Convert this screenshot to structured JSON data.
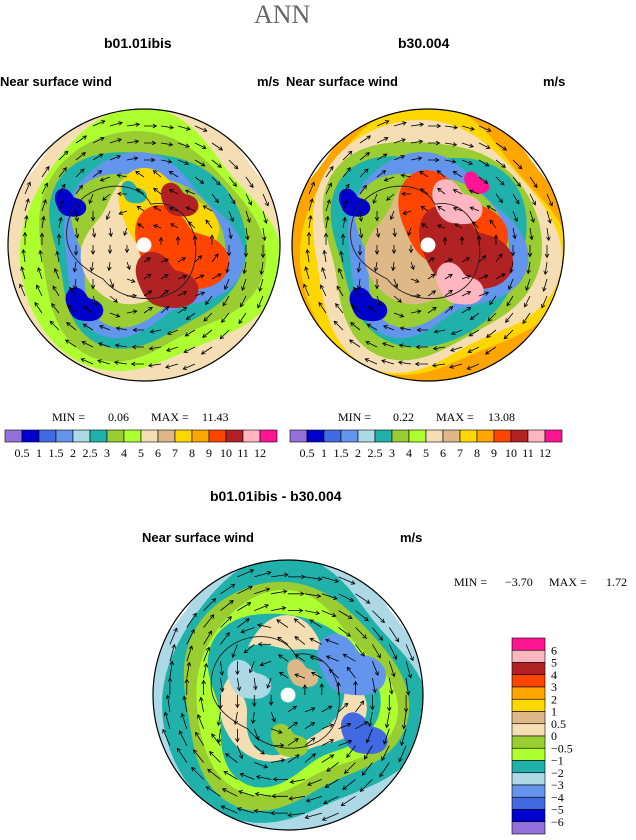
{
  "page": {
    "title": "ANN"
  },
  "colors": {
    "land": "#ffffff",
    "coast": "#222222",
    "arrow": "#000000"
  },
  "chart_data": [
    {
      "type": "heatmap",
      "projection": "polar-stereographic",
      "case": "b01.01ibis",
      "variable": "Near surface wind",
      "units": "m/s",
      "stats": {
        "min_label": "MIN =",
        "min": "0.06",
        "max_label": "MAX =",
        "max": "11.43"
      },
      "colorbar": {
        "orientation": "horizontal",
        "levels": [
          "0.5",
          "1",
          "1.5",
          "2",
          "2.5",
          "3",
          "4",
          "5",
          "6",
          "7",
          "8",
          "9",
          "10",
          "11",
          "12"
        ],
        "colors": [
          "#9370db",
          "#0000cd",
          "#4169e1",
          "#6495ed",
          "#add8e6",
          "#20b2aa",
          "#9acd32",
          "#adff2f",
          "#f5deb3",
          "#deb887",
          "#ffd700",
          "#ffa500",
          "#ff4500",
          "#b22222",
          "#ffb6c1",
          "#ff1493"
        ]
      }
    },
    {
      "type": "heatmap",
      "projection": "polar-stereographic",
      "case": "b30.004",
      "variable": "Near surface wind",
      "units": "m/s",
      "stats": {
        "min_label": "MIN =",
        "min": "0.22",
        "max_label": "MAX =",
        "max": "13.08"
      },
      "colorbar": {
        "orientation": "horizontal",
        "levels": [
          "0.5",
          "1",
          "1.5",
          "2",
          "2.5",
          "3",
          "4",
          "5",
          "6",
          "7",
          "8",
          "9",
          "10",
          "11",
          "12"
        ],
        "colors": [
          "#9370db",
          "#0000cd",
          "#4169e1",
          "#6495ed",
          "#add8e6",
          "#20b2aa",
          "#9acd32",
          "#adff2f",
          "#f5deb3",
          "#deb887",
          "#ffd700",
          "#ffa500",
          "#ff4500",
          "#b22222",
          "#ffb6c1",
          "#ff1493"
        ]
      }
    },
    {
      "type": "heatmap",
      "projection": "polar-stereographic",
      "case": "b01.01ibis - b30.004",
      "variable": "Near surface wind",
      "units": "m/s",
      "stats": {
        "min_label": "MIN =",
        "min": "−3.70",
        "max_label": "MAX =",
        "max": "1.72"
      },
      "colorbar": {
        "orientation": "vertical",
        "levels": [
          "6",
          "5",
          "4",
          "3",
          "2",
          "1",
          "0.5",
          "0",
          "−0.5",
          "−1",
          "−2",
          "−3",
          "−4",
          "−5",
          "−6"
        ],
        "colors": [
          "#ff1493",
          "#ffb6c1",
          "#b22222",
          "#ff4500",
          "#ffa500",
          "#ffd700",
          "#deb887",
          "#f5deb3",
          "#9acd32",
          "#adff2f",
          "#20b2aa",
          "#add8e6",
          "#6495ed",
          "#4169e1",
          "#0000cd",
          "#9370db"
        ]
      }
    }
  ]
}
